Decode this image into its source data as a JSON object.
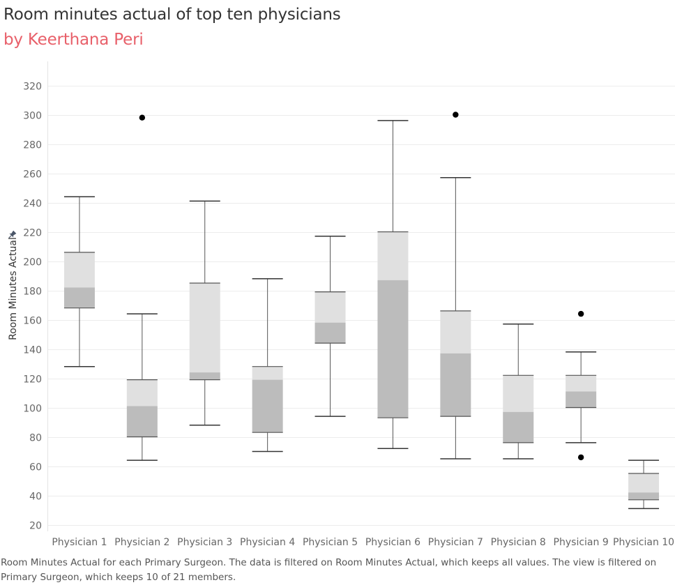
{
  "title": "Room minutes actual of top ten physicians",
  "subtitle": "by Keerthana Peri",
  "caption": "Room Minutes Actual for each Primary Surgeon. The data is filtered on Room Minutes Actual, which keeps all values. The view is filtered on Primary Surgeon, which keeps 10 of 21 members.",
  "colors": {
    "upper_box": "#e0e0e0",
    "lower_box": "#bcbcbc",
    "whisker": "#555555",
    "outlier": "#000000",
    "grid": "#ececec",
    "title": "#333333",
    "subtitle": "#e8606a"
  },
  "chart_data": {
    "type": "boxplot",
    "ylabel": "Room Minutes Actual",
    "ylabel_icon": "pin-icon",
    "ylim": [
      20,
      330
    ],
    "yticks": [
      20,
      40,
      60,
      80,
      100,
      120,
      140,
      160,
      180,
      200,
      220,
      240,
      260,
      280,
      300,
      320
    ],
    "grid": true,
    "categories": [
      "Physician 1",
      "Physician 2",
      "Physician 3",
      "Physician 4",
      "Physician 5",
      "Physician 6",
      "Physician 7",
      "Physician 8",
      "Physician 9",
      "Physician 10"
    ],
    "boxes": [
      {
        "whisker_low": 128,
        "q1": 168,
        "median": 182,
        "q3": 206,
        "whisker_high": 244,
        "outliers": []
      },
      {
        "whisker_low": 64,
        "q1": 80,
        "median": 101,
        "q3": 119,
        "whisker_high": 164,
        "outliers": [
          298
        ]
      },
      {
        "whisker_low": 88,
        "q1": 119,
        "median": 124,
        "q3": 185,
        "whisker_high": 241,
        "outliers": []
      },
      {
        "whisker_low": 70,
        "q1": 83,
        "median": 119,
        "q3": 128,
        "whisker_high": 188,
        "outliers": []
      },
      {
        "whisker_low": 94,
        "q1": 144,
        "median": 158,
        "q3": 179,
        "whisker_high": 217,
        "outliers": []
      },
      {
        "whisker_low": 72,
        "q1": 93,
        "median": 187,
        "q3": 220,
        "whisker_high": 296,
        "outliers": []
      },
      {
        "whisker_low": 65,
        "q1": 94,
        "median": 137,
        "q3": 166,
        "whisker_high": 257,
        "outliers": [
          300
        ]
      },
      {
        "whisker_low": 65,
        "q1": 76,
        "median": 97,
        "q3": 122,
        "whisker_high": 157,
        "outliers": []
      },
      {
        "whisker_low": 76,
        "q1": 100,
        "median": 111,
        "q3": 122,
        "whisker_high": 138,
        "outliers": [
          164,
          66
        ]
      },
      {
        "whisker_low": 31,
        "q1": 37,
        "median": 42,
        "q3": 55,
        "whisker_high": 64,
        "outliers": []
      }
    ]
  }
}
